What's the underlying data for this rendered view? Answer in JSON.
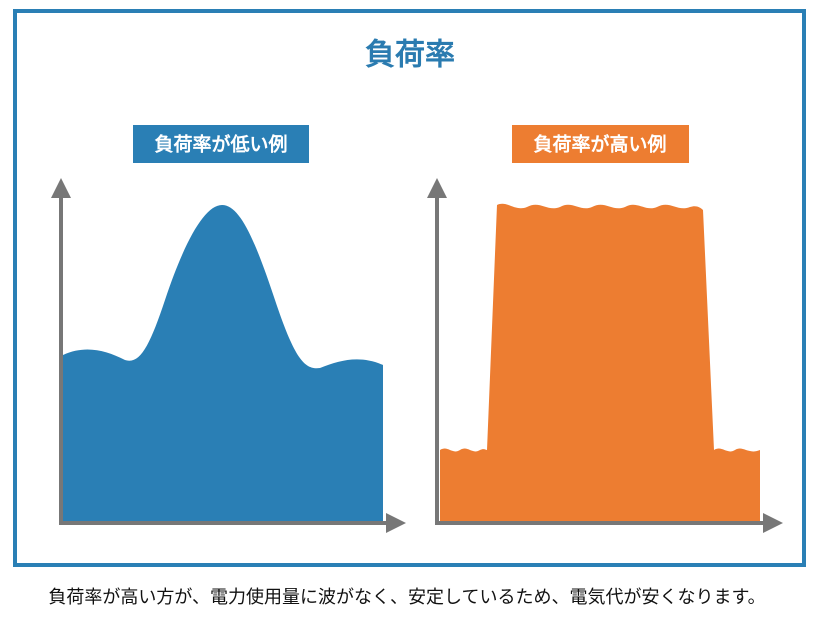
{
  "title": "負荷率",
  "examples": [
    {
      "label": "負荷率が低い例"
    },
    {
      "label": "負荷率が高い例"
    }
  ],
  "caption": "負荷率が高い方が、電力使用量に波がなく、安定しているため、電気代が安くなります。"
}
